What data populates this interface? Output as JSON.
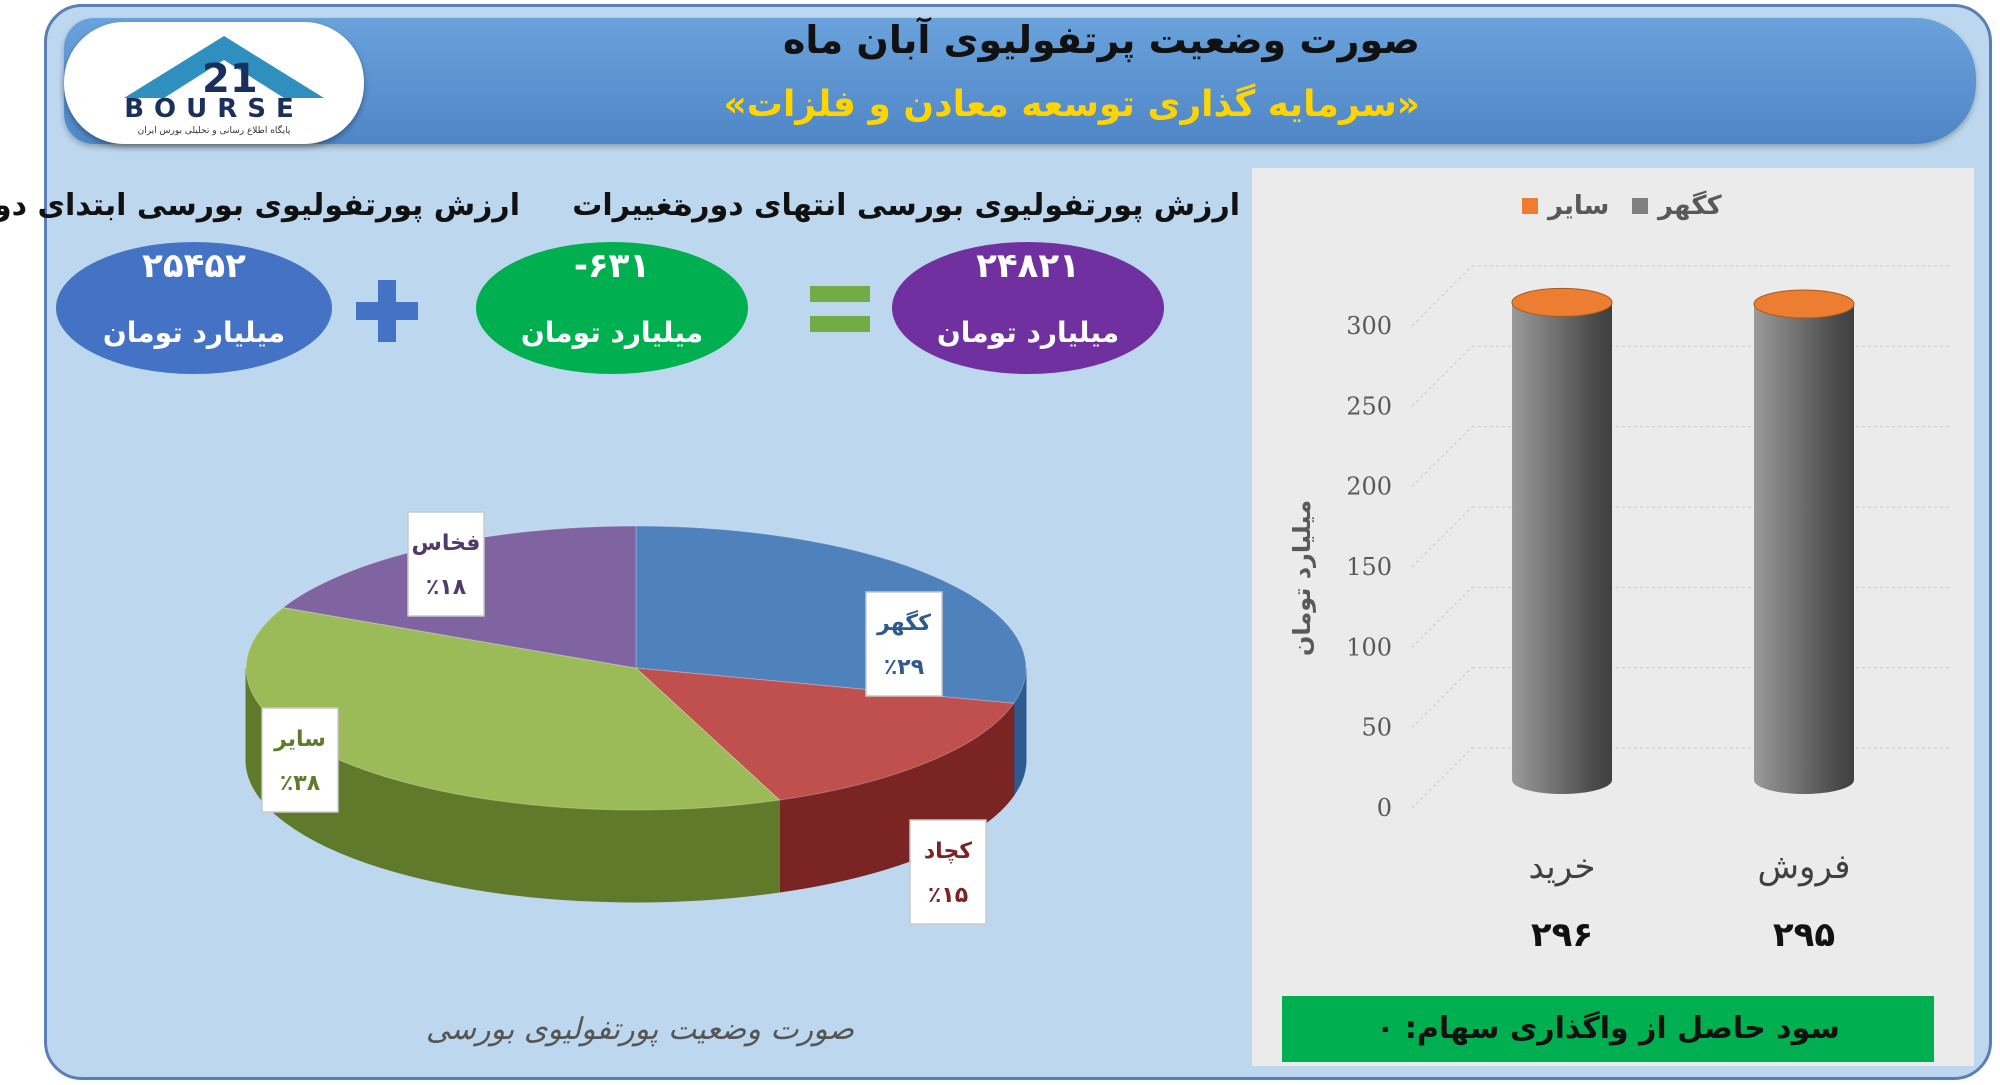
{
  "header": {
    "title": "صورت وضعیت پرتفولیوی آبان ماه",
    "subtitle": "«سرمایه گذاری توسعه معادن و فلزات»"
  },
  "logo": {
    "wordmark": "BOURSE",
    "tagline": "پایگاه اطلاع رسانی و تحلیلی بورس ایران"
  },
  "summary": {
    "start": {
      "label": "ارزش پورتفولیوی بورسی ابتدای دوره",
      "value": "۲۵۴۵۲",
      "unit": "میلیارد تومان",
      "color": "#4472c4"
    },
    "change": {
      "label": "تغییرات",
      "value": "-۶۳۱",
      "unit": "میلیارد تومان",
      "color": "#00b050"
    },
    "end": {
      "label": "ارزش پورتفولیوی بورسی انتهای دوره",
      "value": "۲۴۸۲۱",
      "unit": "میلیارد تومان",
      "color": "#7030a0"
    },
    "plus_color": "#4472c4",
    "equals_color": "#70ad47"
  },
  "chart_data": [
    {
      "type": "pie",
      "title": "صورت وضعیت پورتفولیوی بورسی",
      "slices": [
        {
          "name": "کگهر",
          "percent": 29,
          "label": "٪۲۹",
          "color": "#4f81bd",
          "dark": "#2e5a8f"
        },
        {
          "name": "کچاد",
          "percent": 15,
          "label": "٪۱۵",
          "color": "#c0504d",
          "dark": "#7a2523"
        },
        {
          "name": "سایر",
          "percent": 38,
          "label": "٪۳۸",
          "color": "#9bbb59",
          "dark": "#5f7a2a"
        },
        {
          "name": "فخاس",
          "percent": 18,
          "label": "٪۱۸",
          "color": "#8064a2",
          "dark": "#4f3a6b"
        }
      ]
    },
    {
      "type": "bar",
      "categories": [
        "خرید",
        "فروش"
      ],
      "category_values": [
        "۲۹۶",
        "۲۹۵"
      ],
      "series": [
        {
          "name": "کگهر",
          "color": "#808080",
          "values": [
            296,
            295
          ]
        },
        {
          "name": "سایر",
          "color": "#ed7d31",
          "values": [
            0,
            0
          ]
        }
      ],
      "ylabel": "میلیارد تومان",
      "ylim": [
        0,
        300
      ],
      "yticks": [
        0,
        50,
        100,
        150,
        200,
        250,
        300
      ],
      "grid": true,
      "legend_position": "top"
    }
  ],
  "profit_note": "سود حاصل از واگذاری سهام: ۰"
}
